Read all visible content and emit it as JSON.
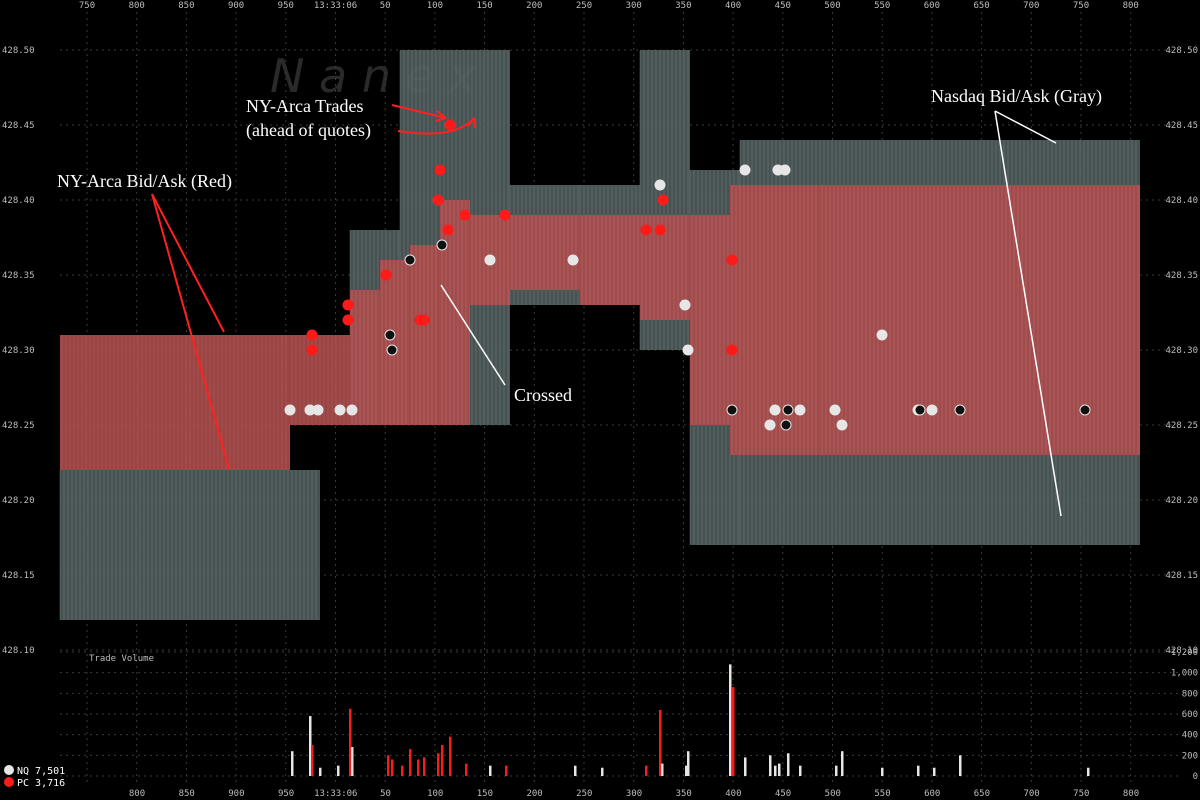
{
  "chart_data": {
    "type": "area",
    "watermark": "N a n e x",
    "time_label": "13:33:06",
    "x_ticks_top": [
      "750",
      "800",
      "850",
      "900",
      "950",
      "13:33:06",
      "50",
      "100",
      "150",
      "200",
      "250",
      "300",
      "350",
      "400",
      "450",
      "500",
      "550",
      "600",
      "650",
      "700",
      "750",
      "800"
    ],
    "x_ticks_bottom": [
      "800",
      "850",
      "900",
      "950",
      "13:33:06",
      "50",
      "100",
      "150",
      "200",
      "250",
      "300",
      "350",
      "400",
      "450",
      "500",
      "550",
      "600",
      "650",
      "700",
      "750",
      "800"
    ],
    "y_ticks": [
      "428.50",
      "428.45",
      "428.40",
      "428.35",
      "428.30",
      "428.25",
      "428.20",
      "428.15",
      "428.10"
    ],
    "ylim": [
      428.1,
      428.5
    ],
    "volume_label": "Trade Volume",
    "volume_ticks": [
      "1,200",
      "1,000",
      "800",
      "600",
      "400",
      "200",
      "0"
    ],
    "volume_ylim": [
      0,
      1200
    ],
    "legend": [
      {
        "label": "NQ 7,501",
        "color": "#e6e6e6"
      },
      {
        "label": "PC 3,716",
        "color": "#ff1a1a"
      }
    ],
    "annotations": [
      {
        "id": "arca-trades-1",
        "text": "NY-Arca Trades"
      },
      {
        "id": "arca-trades-2",
        "text": "(ahead of quotes)"
      },
      {
        "id": "arca-bidask",
        "text": "NY-Arca Bid/Ask (Red)"
      },
      {
        "id": "nasdaq-bidask",
        "text": "Nasdaq Bid/Ask (Gray)"
      },
      {
        "id": "crossed",
        "text": "Crossed"
      }
    ],
    "series": [
      {
        "name": "NY-Arca Bid/Ask (Red)",
        "color": "#b35454",
        "segments": [
          {
            "x0": 60,
            "x1": 290,
            "bid": 428.22,
            "ask": 428.31
          },
          {
            "x0": 290,
            "x1": 350,
            "bid": 428.25,
            "ask": 428.31
          },
          {
            "x0": 350,
            "x1": 380,
            "bid": 428.25,
            "ask": 428.34
          },
          {
            "x0": 380,
            "x1": 410,
            "bid": 428.25,
            "ask": 428.36
          },
          {
            "x0": 410,
            "x1": 440,
            "bid": 428.25,
            "ask": 428.37
          },
          {
            "x0": 440,
            "x1": 470,
            "bid": 428.25,
            "ask": 428.4
          },
          {
            "x0": 470,
            "x1": 510,
            "bid": 428.33,
            "ask": 428.39
          },
          {
            "x0": 510,
            "x1": 580,
            "bid": 428.34,
            "ask": 428.39
          },
          {
            "x0": 580,
            "x1": 640,
            "bid": 428.33,
            "ask": 428.39
          },
          {
            "x0": 640,
            "x1": 690,
            "bid": 428.32,
            "ask": 428.39
          },
          {
            "x0": 690,
            "x1": 730,
            "bid": 428.25,
            "ask": 428.39
          },
          {
            "x0": 730,
            "x1": 820,
            "bid": 428.23,
            "ask": 428.41
          },
          {
            "x0": 820,
            "x1": 1140,
            "bid": 428.23,
            "ask": 428.41
          }
        ]
      },
      {
        "name": "Nasdaq Bid/Ask (Gray)",
        "color": "#4f5b5b",
        "segments": [
          {
            "x0": 60,
            "x1": 320,
            "bid": 428.12,
            "ask": 428.22
          },
          {
            "x0": 350,
            "x1": 400,
            "bid": 428.25,
            "ask": 428.38
          },
          {
            "x0": 400,
            "x1": 510,
            "bid": 428.25,
            "ask": 428.5
          },
          {
            "x0": 510,
            "x1": 580,
            "bid": 428.33,
            "ask": 428.41
          },
          {
            "x0": 580,
            "x1": 640,
            "bid": 428.33,
            "ask": 428.41
          },
          {
            "x0": 640,
            "x1": 690,
            "bid": 428.3,
            "ask": 428.5
          },
          {
            "x0": 690,
            "x1": 740,
            "bid": 428.17,
            "ask": 428.42
          },
          {
            "x0": 740,
            "x1": 1140,
            "bid": 428.17,
            "ask": 428.44
          }
        ]
      }
    ],
    "trades_nasdaq": [
      {
        "x": 290,
        "y": 428.26
      },
      {
        "x": 310,
        "y": 428.26
      },
      {
        "x": 318,
        "y": 428.26
      },
      {
        "x": 340,
        "y": 428.26
      },
      {
        "x": 352,
        "y": 428.26
      },
      {
        "x": 490,
        "y": 428.36
      },
      {
        "x": 573,
        "y": 428.36
      },
      {
        "x": 660,
        "y": 428.41
      },
      {
        "x": 685,
        "y": 428.33
      },
      {
        "x": 688,
        "y": 428.3
      },
      {
        "x": 745,
        "y": 428.42
      },
      {
        "x": 770,
        "y": 428.25
      },
      {
        "x": 775,
        "y": 428.26
      },
      {
        "x": 778,
        "y": 428.42
      },
      {
        "x": 785,
        "y": 428.42
      },
      {
        "x": 800,
        "y": 428.26
      },
      {
        "x": 835,
        "y": 428.26
      },
      {
        "x": 842,
        "y": 428.25
      },
      {
        "x": 882,
        "y": 428.31
      },
      {
        "x": 918,
        "y": 428.26
      },
      {
        "x": 932,
        "y": 428.26
      }
    ],
    "trades_arca": [
      {
        "x": 312,
        "y": 428.31
      },
      {
        "x": 312,
        "y": 428.3
      },
      {
        "x": 348,
        "y": 428.33
      },
      {
        "x": 348,
        "y": 428.32
      },
      {
        "x": 386,
        "y": 428.35
      },
      {
        "x": 420,
        "y": 428.32
      },
      {
        "x": 424,
        "y": 428.32
      },
      {
        "x": 438,
        "y": 428.4
      },
      {
        "x": 440,
        "y": 428.42
      },
      {
        "x": 448,
        "y": 428.38
      },
      {
        "x": 450,
        "y": 428.45
      },
      {
        "x": 465,
        "y": 428.39
      },
      {
        "x": 505,
        "y": 428.39
      },
      {
        "x": 646,
        "y": 428.38
      },
      {
        "x": 660,
        "y": 428.38
      },
      {
        "x": 663,
        "y": 428.4
      },
      {
        "x": 732,
        "y": 428.36
      },
      {
        "x": 732,
        "y": 428.3
      }
    ],
    "trades_other": [
      {
        "x": 390,
        "y": 428.31
      },
      {
        "x": 392,
        "y": 428.3
      },
      {
        "x": 410,
        "y": 428.36
      },
      {
        "x": 442,
        "y": 428.37
      },
      {
        "x": 732,
        "y": 428.26
      },
      {
        "x": 788,
        "y": 428.26
      },
      {
        "x": 786,
        "y": 428.25
      },
      {
        "x": 920,
        "y": 428.26
      },
      {
        "x": 960,
        "y": 428.26
      },
      {
        "x": 1085,
        "y": 428.26
      }
    ],
    "volume_bars": [
      {
        "x": 292,
        "v": 240,
        "c": "w"
      },
      {
        "x": 310,
        "v": 580,
        "c": "w"
      },
      {
        "x": 312,
        "v": 300,
        "c": "r"
      },
      {
        "x": 320,
        "v": 80,
        "c": "w"
      },
      {
        "x": 338,
        "v": 100,
        "c": "w"
      },
      {
        "x": 350,
        "v": 650,
        "c": "r"
      },
      {
        "x": 352,
        "v": 280,
        "c": "w"
      },
      {
        "x": 388,
        "v": 200,
        "c": "r"
      },
      {
        "x": 392,
        "v": 160,
        "c": "r"
      },
      {
        "x": 402,
        "v": 100,
        "c": "r"
      },
      {
        "x": 410,
        "v": 260,
        "c": "r"
      },
      {
        "x": 418,
        "v": 160,
        "c": "r"
      },
      {
        "x": 424,
        "v": 180,
        "c": "r"
      },
      {
        "x": 438,
        "v": 220,
        "c": "r"
      },
      {
        "x": 442,
        "v": 300,
        "c": "r"
      },
      {
        "x": 450,
        "v": 380,
        "c": "r"
      },
      {
        "x": 466,
        "v": 120,
        "c": "r"
      },
      {
        "x": 490,
        "v": 100,
        "c": "w"
      },
      {
        "x": 506,
        "v": 100,
        "c": "r"
      },
      {
        "x": 575,
        "v": 100,
        "c": "w"
      },
      {
        "x": 602,
        "v": 80,
        "c": "w"
      },
      {
        "x": 646,
        "v": 100,
        "c": "r"
      },
      {
        "x": 660,
        "v": 640,
        "c": "r"
      },
      {
        "x": 662,
        "v": 120,
        "c": "w"
      },
      {
        "x": 686,
        "v": 100,
        "c": "w"
      },
      {
        "x": 688,
        "v": 240,
        "c": "w"
      },
      {
        "x": 730,
        "v": 1080,
        "c": "w"
      },
      {
        "x": 733,
        "v": 860,
        "c": "r"
      },
      {
        "x": 745,
        "v": 180,
        "c": "w"
      },
      {
        "x": 770,
        "v": 200,
        "c": "w"
      },
      {
        "x": 775,
        "v": 100,
        "c": "w"
      },
      {
        "x": 779,
        "v": 120,
        "c": "w"
      },
      {
        "x": 788,
        "v": 220,
        "c": "w"
      },
      {
        "x": 800,
        "v": 100,
        "c": "w"
      },
      {
        "x": 836,
        "v": 100,
        "c": "w"
      },
      {
        "x": 842,
        "v": 240,
        "c": "w"
      },
      {
        "x": 882,
        "v": 80,
        "c": "w"
      },
      {
        "x": 918,
        "v": 100,
        "c": "w"
      },
      {
        "x": 934,
        "v": 80,
        "c": "w"
      },
      {
        "x": 960,
        "v": 200,
        "c": "w"
      },
      {
        "x": 1088,
        "v": 80,
        "c": "w"
      }
    ]
  }
}
